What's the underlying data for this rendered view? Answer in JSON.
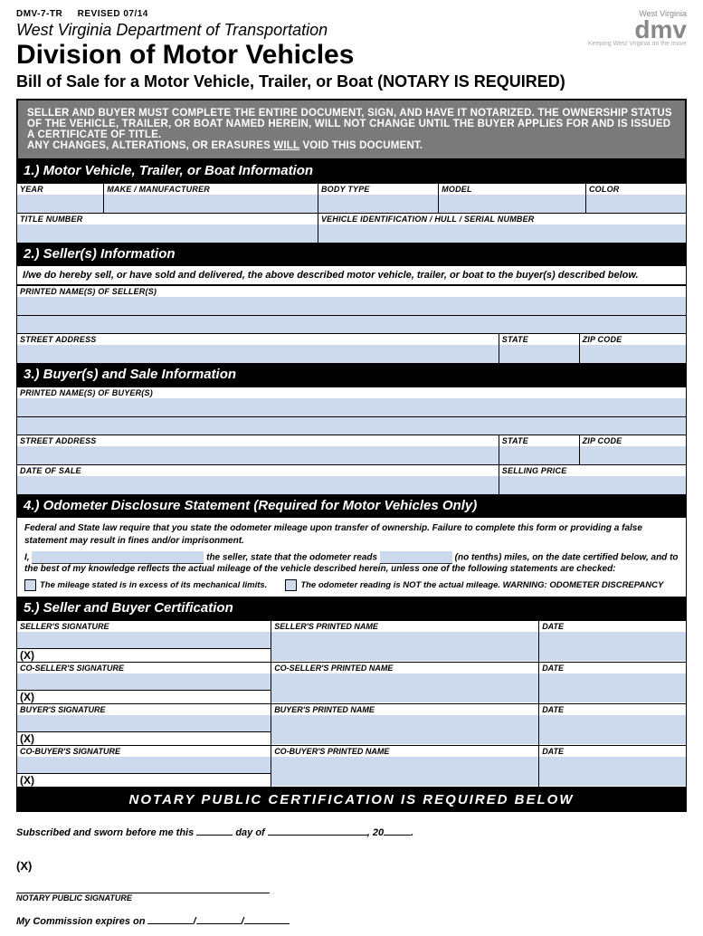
{
  "header": {
    "form_code": "DMV-7-TR",
    "revised": "REVISED 07/14",
    "department": "West Virginia Department of Transportation",
    "division": "Division of Motor Vehicles",
    "subtitle": "Bill of Sale for a Motor Vehicle, Trailer, or Boat (NOTARY IS REQUIRED)",
    "logo_state": "West Virginia",
    "logo_text": "dmv",
    "logo_tagline": "Keeping West Virginia on the move"
  },
  "instructions": {
    "line1": "SELLER AND BUYER MUST COMPLETE THE ENTIRE DOCUMENT, SIGN, AND HAVE IT NOTARIZED.  THE OWNERSHIP STATUS OF THE VEHICLE, TRAILER, OR BOAT NAMED HEREIN, WILL NOT CHANGE UNTIL THE BUYER APPLIES FOR AND IS ISSUED A CERTIFICATE OF TITLE.",
    "line2a": "ANY CHANGES, ALTERATIONS, OR ERASURES ",
    "line2b": "WILL",
    "line2c": " VOID THIS DOCUMENT."
  },
  "sections": {
    "s1": {
      "title": "1.) Motor Vehicle, Trailer, or Boat Information",
      "fields": {
        "year": "YEAR",
        "make": "MAKE / MANUFACTURER",
        "body": "BODY TYPE",
        "model": "MODEL",
        "color": "COLOR",
        "title_no": "TITLE NUMBER",
        "vin": "VEHICLE IDENTIFICATION / HULL / SERIAL NUMBER"
      }
    },
    "s2": {
      "title": "2.) Seller(s) Information",
      "declaration": "I/we do hereby sell, or have sold and delivered, the above described motor vehicle, trailer, or boat to the buyer(s) described below.",
      "fields": {
        "printed_name": "PRINTED NAME(S) OF SELLER(S)",
        "street": "STREET ADDRESS",
        "state": "STATE",
        "zip": "ZIP CODE"
      }
    },
    "s3": {
      "title": "3.) Buyer(s) and Sale Information",
      "fields": {
        "printed_name": "PRINTED NAME(S) OF BUYER(S)",
        "street": "STREET ADDRESS",
        "state": "STATE",
        "zip": "ZIP CODE",
        "date_sale": "DATE OF SALE",
        "price": "SELLING PRICE"
      }
    },
    "s4": {
      "title": "4.) Odometer Disclosure Statement (Required for Motor Vehicles Only)",
      "text1": "Federal and State law require that you state the odometer mileage upon transfer of ownership.  Failure to complete this form or providing a false statement may result in fines and/or imprisonment.",
      "text2a": "I, ",
      "text2b": " the seller, state that the odometer reads ",
      "text2c": " (no tenths) miles, on the date certified below, and to the best of my knowledge reflects the actual mileage of the vehicle described herein, unless one of the following statements are checked:",
      "cb1": "The mileage stated is in excess of its mechanical limits.",
      "cb2": "The odometer reading is NOT the actual mileage.  WARNING: ODOMETER DISCREPANCY"
    },
    "s5": {
      "title": "5.) Seller and Buyer Certification",
      "rows": [
        {
          "sig": "SELLER'S SIGNATURE",
          "name": "SELLER'S PRINTED NAME",
          "date": "DATE"
        },
        {
          "sig": "CO-SELLER'S SIGNATURE",
          "name": "CO-SELLER'S PRINTED NAME",
          "date": "DATE"
        },
        {
          "sig": "BUYER'S SIGNATURE",
          "name": "BUYER'S PRINTED NAME",
          "date": "DATE"
        },
        {
          "sig": "CO-BUYER'S SIGNATURE",
          "name": "CO-BUYER'S PRINTED NAME",
          "date": "DATE"
        }
      ],
      "x_mark": "(X)"
    },
    "notary": {
      "banner": "NOTARY PUBLIC CERTIFICATION IS REQUIRED BELOW",
      "sworn1": "Subscribed and sworn before me this ",
      "sworn2": " day of ",
      "sworn3": ", 20",
      "sworn4": ".",
      "x_mark": "(X)",
      "sig_label": "NOTARY PUBLIC SIGNATURE",
      "commission": "My Commission expires on ",
      "slash": "/"
    }
  },
  "colors": {
    "input_bg": "#cdd9ec",
    "header_bg": "#7a7a7a",
    "border": "#000000"
  }
}
